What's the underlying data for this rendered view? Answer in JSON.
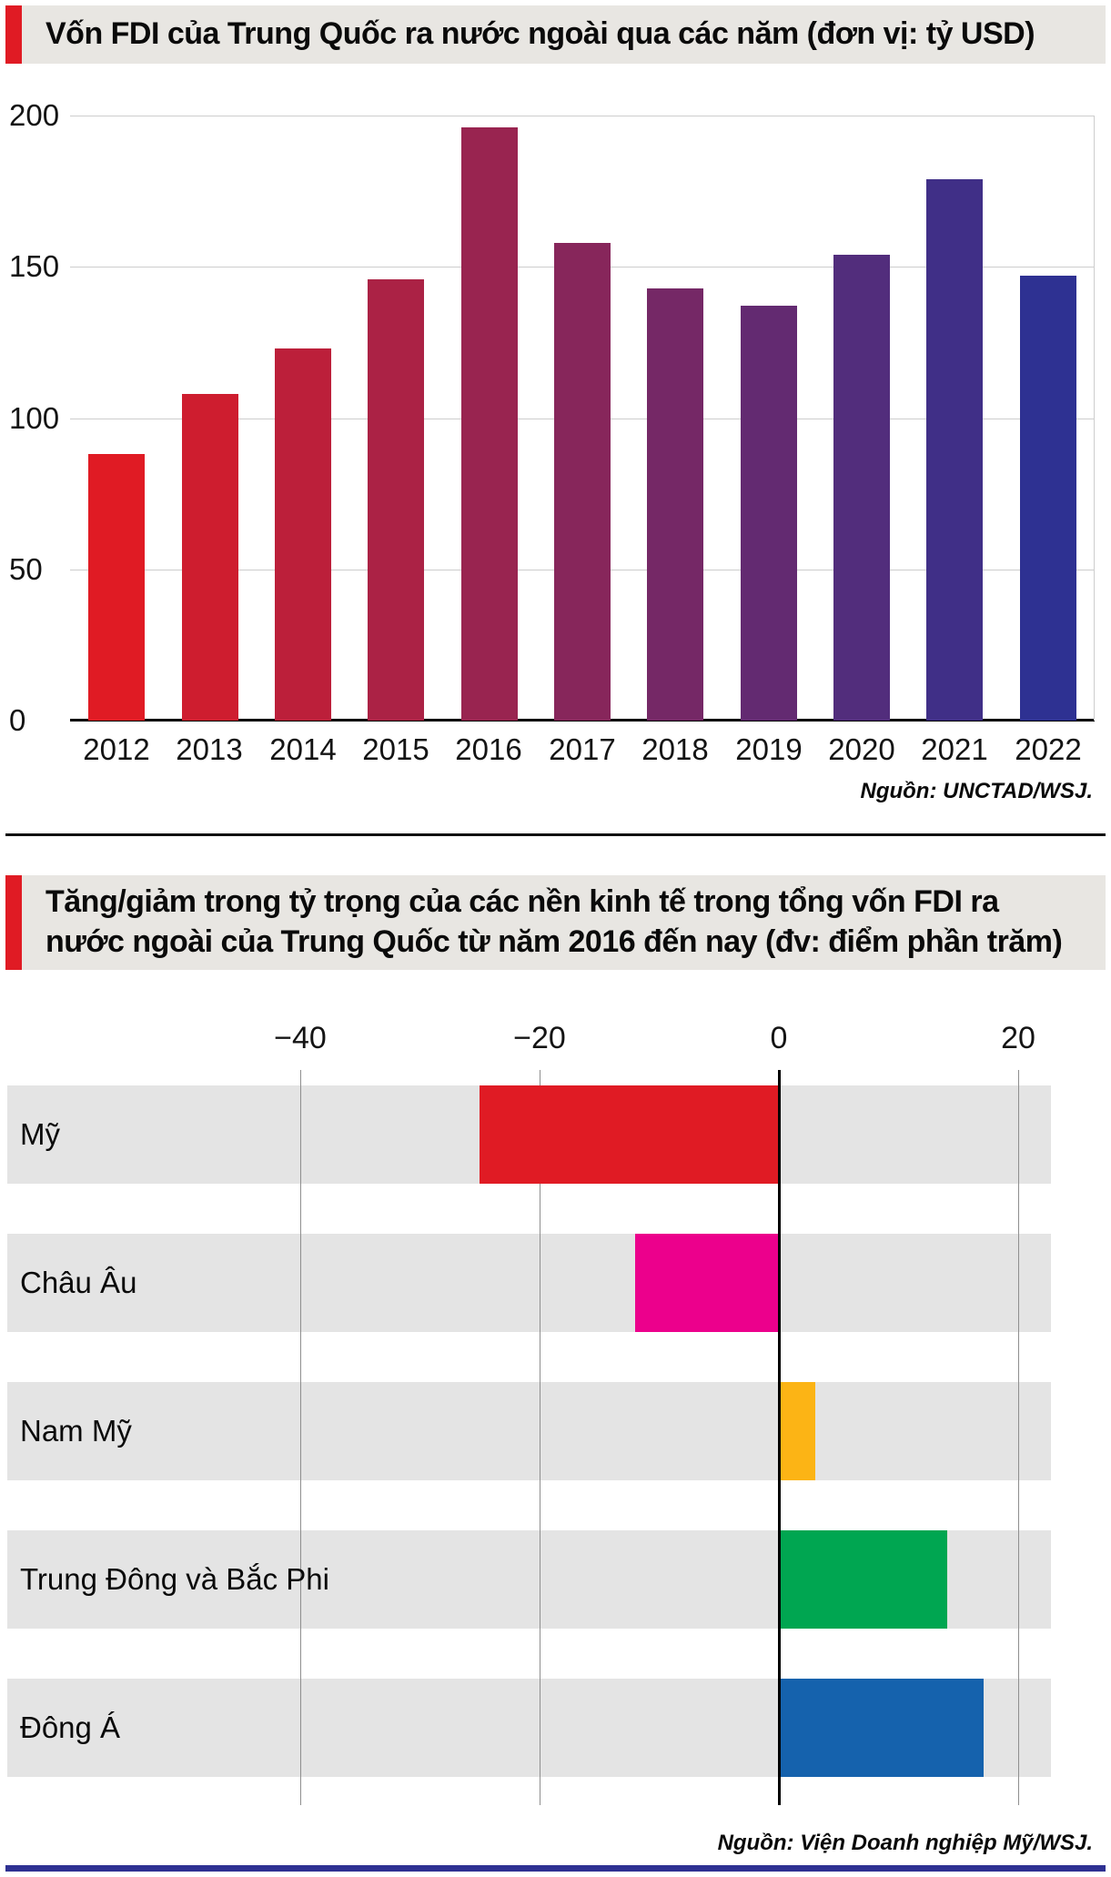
{
  "page": {
    "background": "#ffffff",
    "accent_color": "#e01b24",
    "title_band_bg": "#e8e6e2",
    "bottom_rule_color": "#2e3192"
  },
  "chart_data": [
    {
      "id": "china-outbound-fdi-by-year",
      "type": "bar",
      "title": "Vốn FDI của Trung Quốc ra nước ngoài qua các năm (đơn vị: tỷ USD)",
      "source": "Nguồn: UNCTAD/WSJ.",
      "categories": [
        "2012",
        "2013",
        "2014",
        "2015",
        "2016",
        "2017",
        "2018",
        "2019",
        "2020",
        "2021",
        "2022"
      ],
      "values": [
        88,
        108,
        123,
        146,
        196,
        158,
        143,
        137,
        154,
        179,
        147
      ],
      "bar_colors": [
        "#e01b24",
        "#ce1d2f",
        "#bc1f3a",
        "#ab2245",
        "#992450",
        "#87265b",
        "#752866",
        "#632a71",
        "#522d7c",
        "#402f87",
        "#2e3192"
      ],
      "xlabel": "",
      "ylabel": "",
      "ylim": [
        0,
        200
      ],
      "yticks": [
        0,
        50,
        100,
        150,
        200
      ],
      "grid": "horizontal",
      "legend": "none"
    },
    {
      "id": "china-fdi-share-change-since-2016",
      "type": "bar",
      "orientation": "horizontal",
      "title": "Tăng/giảm trong tỷ trọng của các nền kinh tế trong tổng vốn FDI ra nước ngoài của Trung Quốc từ năm 2016 đến nay (đv: điểm phần trăm)",
      "title_lines": [
        "Tăng/giảm trong tỷ trọng của các nền kinh tế trong tổng vốn FDI ra",
        "nước ngoài của Trung Quốc từ năm 2016 đến nay (đv: điểm phần trăm)"
      ],
      "source": "Nguồn: Viện Doanh nghiệp Mỹ/WSJ.",
      "categories": [
        "Mỹ",
        "Châu Âu",
        "Nam Mỹ",
        "Trung Đông và Bắc Phi",
        "Đông Á"
      ],
      "values": [
        -25,
        -12,
        3,
        14,
        17
      ],
      "bar_colors": [
        "#e01b24",
        "#ec008c",
        "#fcb415",
        "#00a651",
        "#1562ad"
      ],
      "xticks": [
        -40,
        -20,
        0,
        20
      ],
      "xtick_labels": [
        "−40",
        "−20",
        "0",
        "20"
      ],
      "xlim": [
        -64.5,
        22.7
      ],
      "grid": "vertical",
      "legend": "none"
    }
  ]
}
